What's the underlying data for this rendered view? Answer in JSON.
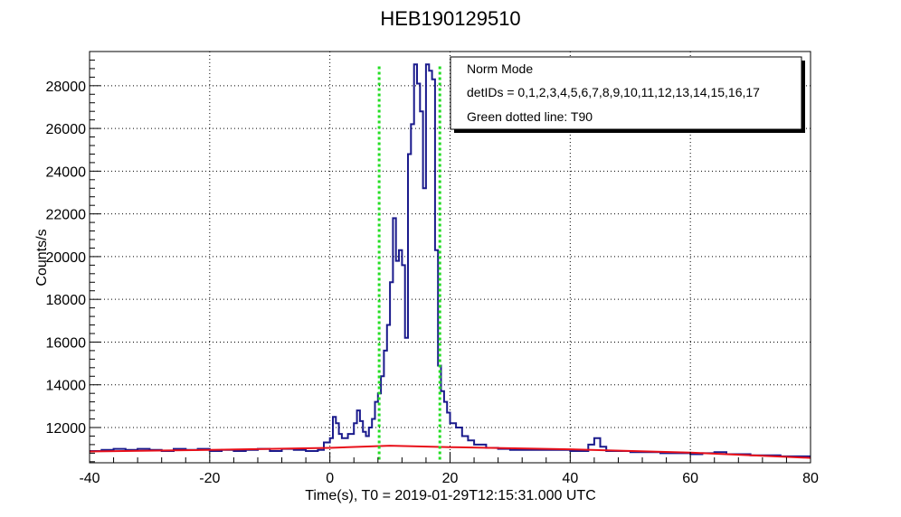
{
  "chart_data": {
    "type": "line",
    "title": "HEB190129510",
    "xlabel": "Time(s), T0 = 2019-01-29T12:15:31.000 UTC",
    "ylabel": "Counts/s",
    "xlim": [
      -40,
      80
    ],
    "ylim": [
      10350,
      29600
    ],
    "xticks": [
      -40,
      -20,
      0,
      20,
      40,
      60,
      80
    ],
    "yticks": [
      12000,
      14000,
      16000,
      18000,
      20000,
      22000,
      24000,
      26000,
      28000
    ],
    "grid": true,
    "legend_position": "top-right",
    "legend": [
      "Norm Mode",
      "detIDs = 0,1,2,3,4,5,6,7,8,9,10,11,12,13,14,15,16,17",
      "Green dotted line: T90"
    ],
    "colors": {
      "lightcurve": "#1a1a8c",
      "background": "#e8101a",
      "t90": "#22dd22"
    },
    "series": [
      {
        "style": "step",
        "x": [
          -40,
          -38,
          -36,
          -34,
          -32,
          -30,
          -28,
          -26,
          -24,
          -22,
          -20,
          -18,
          -16,
          -14,
          -12,
          -10,
          -8,
          -6,
          -4,
          -2,
          -1,
          0,
          0.5,
          1,
          1.5,
          2,
          3,
          4,
          4.5,
          5,
          5.5,
          6,
          6.5,
          7,
          7.5,
          8,
          8.5,
          9,
          9.5,
          10,
          10.5,
          11,
          11.5,
          12,
          12.5,
          13,
          13.5,
          14,
          14.5,
          15,
          15.5,
          16,
          16.5,
          17,
          17.5,
          18,
          18.5,
          19,
          19.5,
          20,
          21,
          22,
          23,
          24,
          26,
          28,
          30,
          35,
          40,
          43,
          44,
          45,
          46,
          50,
          55,
          60,
          62,
          64,
          66,
          70,
          75,
          80
        ],
        "y": [
          10900,
          10950,
          11000,
          10950,
          11000,
          10950,
          10900,
          11000,
          10950,
          11000,
          10900,
          10950,
          10900,
          10950,
          11000,
          10900,
          11000,
          10950,
          10900,
          10950,
          11300,
          11500,
          12500,
          12200,
          11700,
          11500,
          11700,
          12200,
          12800,
          12300,
          11800,
          11600,
          12000,
          12400,
          13200,
          13600,
          14400,
          15600,
          16800,
          18800,
          21800,
          19800,
          20300,
          19600,
          16200,
          24800,
          26200,
          29000,
          28100,
          26800,
          23200,
          29000,
          28700,
          28300,
          20300,
          14900,
          13700,
          13200,
          12700,
          12200,
          12000,
          11600,
          11400,
          11200,
          11050,
          11000,
          10950,
          10950,
          10900,
          11200,
          11500,
          11100,
          10900,
          10850,
          10800,
          10750,
          10800,
          10850,
          10750,
          10700,
          10650,
          10650
        ]
      },
      {
        "style": "line",
        "x": [
          -40,
          -20,
          0,
          10,
          20,
          40,
          60,
          80
        ],
        "y": [
          10880,
          10950,
          11050,
          11150,
          11080,
          10980,
          10830,
          10580
        ]
      }
    ],
    "vlines": [
      8.2,
      18.3
    ]
  }
}
